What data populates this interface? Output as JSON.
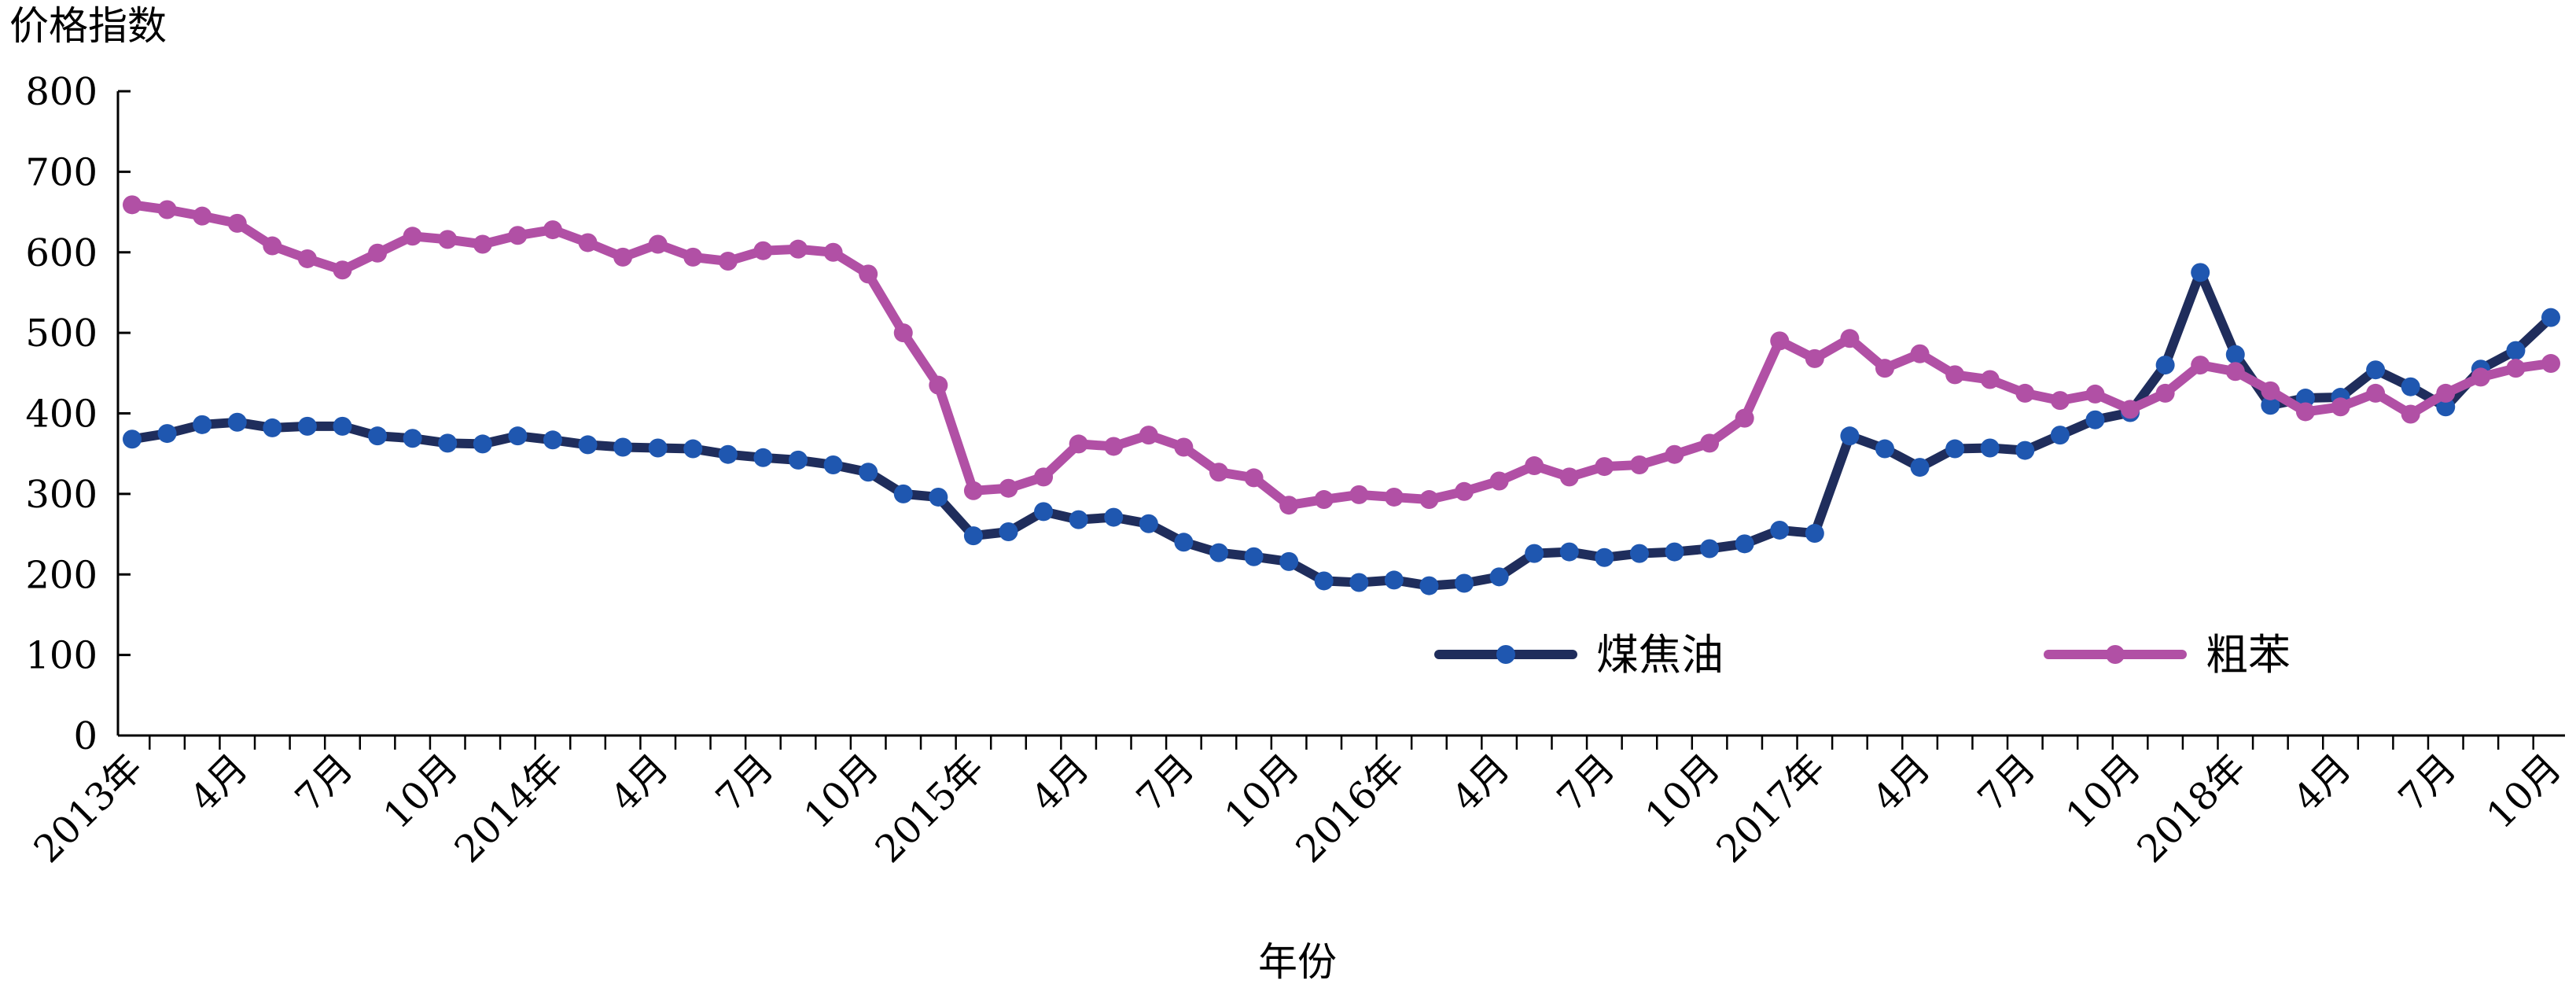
{
  "chart_data": {
    "type": "line",
    "ylabel": "价格指数",
    "xlabel": "年份",
    "ylim": [
      0,
      800
    ],
    "yticks": [
      "0",
      "100",
      "200",
      "300",
      "400",
      "500",
      "600",
      "700",
      "800"
    ],
    "grid": false,
    "legend_position": "lower-right",
    "x_tick_labels": [
      "2013年",
      "4月",
      "7月",
      "10月",
      "2014年",
      "4月",
      "7月",
      "10月",
      "2015年",
      "4月",
      "7月",
      "10月",
      "2016年",
      "4月",
      "7月",
      "10月",
      "2017年",
      "4月",
      "7月",
      "10月",
      "2018年",
      "4月",
      "7月",
      "10月"
    ],
    "series": [
      {
        "name": "煤焦油",
        "color": "#1f2d5c",
        "marker_color": "#1f57b0",
        "values": [
          368,
          375,
          386,
          389,
          382,
          384,
          384,
          372,
          369,
          363,
          362,
          372,
          367,
          361,
          358,
          357,
          356,
          349,
          345,
          342,
          336,
          327,
          300,
          296,
          248,
          253,
          278,
          268,
          271,
          263,
          240,
          227,
          222,
          216,
          192,
          190,
          193,
          186,
          189,
          197,
          226,
          228,
          221,
          226,
          228,
          232,
          238,
          255,
          251,
          372,
          356,
          333,
          356,
          357,
          354,
          373,
          392,
          401,
          460,
          575,
          473,
          410,
          419,
          420,
          454,
          433,
          408,
          455,
          478,
          519
        ]
      },
      {
        "name": "粗苯",
        "color": "#b150a5",
        "marker_color": "#b150a5",
        "values": [
          659,
          653,
          645,
          636,
          608,
          592,
          578,
          599,
          620,
          616,
          610,
          621,
          628,
          612,
          594,
          610,
          594,
          589,
          602,
          604,
          600,
          573,
          500,
          435,
          304,
          307,
          321,
          362,
          359,
          373,
          358,
          327,
          320,
          286,
          293,
          299,
          296,
          293,
          303,
          316,
          335,
          321,
          334,
          336,
          349,
          363,
          394,
          490,
          468,
          493,
          456,
          474,
          448,
          442,
          425,
          416,
          424,
          405,
          425,
          460,
          452,
          428,
          402,
          408,
          425,
          399,
          425,
          445,
          456,
          462
        ]
      }
    ]
  }
}
